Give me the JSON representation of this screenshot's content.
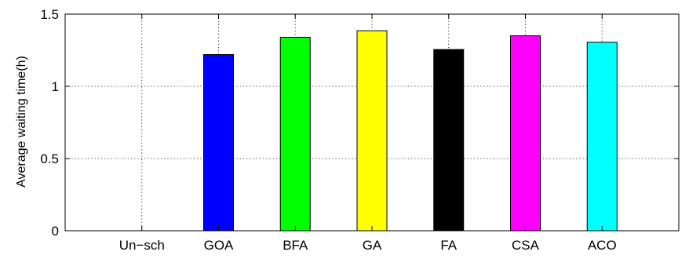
{
  "chart_data": {
    "type": "bar",
    "title": "",
    "xlabel": "",
    "ylabel": "Average waiting time(h)",
    "categories": [
      "Un−sch",
      "GOA",
      "BFA",
      "GA",
      "FA",
      "CSA",
      "ACO"
    ],
    "values": [
      0,
      1.22,
      1.34,
      1.385,
      1.255,
      1.35,
      1.305
    ],
    "colors": [
      "#ffffff",
      "#0000ff",
      "#00ff00",
      "#ffff00",
      "#000000",
      "#ff00ff",
      "#00ffff"
    ],
    "ylim": [
      0,
      1.5
    ],
    "yticks": [
      0,
      0.5,
      1,
      1.5
    ],
    "ytick_labels": [
      "0",
      "0.5",
      "1",
      "1.5"
    ],
    "grid": true,
    "grid_style": "dotted",
    "legend": "none"
  }
}
